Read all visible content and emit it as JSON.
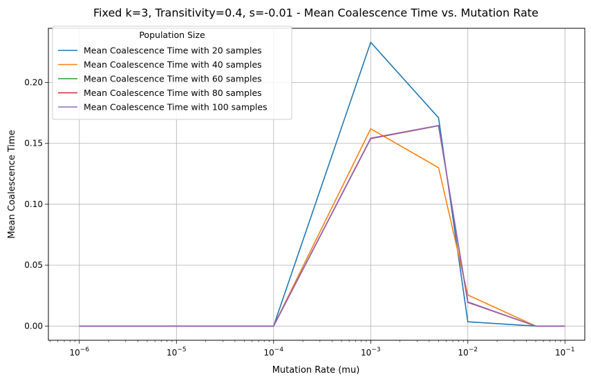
{
  "chart_data": {
    "type": "line",
    "title": "Fixed k=3, Transitivity=0.4, s=-0.01 - Mean Coalescence Time vs. Mutation Rate",
    "xlabel": "Mutation Rate (mu)",
    "ylabel": "Mean Coalescence Time",
    "xscale": "log",
    "xlim": [
      4.8e-07,
      0.16
    ],
    "ylim": [
      -0.0117,
      0.2445
    ],
    "grid": true,
    "legend": {
      "title": "Population Size",
      "placement": "upper-left"
    },
    "x": [
      1e-06,
      1e-05,
      0.0001,
      0.001,
      0.005,
      0.01,
      0.05,
      0.1
    ],
    "x_ticks": [
      {
        "value": 1e-06,
        "base": "10",
        "exp": "−6"
      },
      {
        "value": 1e-05,
        "base": "10",
        "exp": "−5"
      },
      {
        "value": 0.0001,
        "base": "10",
        "exp": "−4"
      },
      {
        "value": 0.001,
        "base": "10",
        "exp": "−3"
      },
      {
        "value": 0.01,
        "base": "10",
        "exp": "−2"
      },
      {
        "value": 0.1,
        "base": "10",
        "exp": "−1"
      }
    ],
    "y_ticks": [
      {
        "value": 0.0,
        "label": "0.00"
      },
      {
        "value": 0.05,
        "label": "0.05"
      },
      {
        "value": 0.1,
        "label": "0.10"
      },
      {
        "value": 0.15,
        "label": "0.15"
      },
      {
        "value": 0.2,
        "label": "0.20"
      }
    ],
    "series": [
      {
        "name": "Mean Coalescence Time with 20 samples",
        "color": "#1f77b4",
        "values": [
          0,
          0,
          0,
          0.233,
          0.171,
          0.0035,
          0,
          0
        ]
      },
      {
        "name": "Mean Coalescence Time with 40 samples",
        "color": "#ff7f0e",
        "values": [
          0,
          0,
          0,
          0.162,
          0.13,
          0.0255,
          0,
          0
        ]
      },
      {
        "name": "Mean Coalescence Time with 60 samples",
        "color": "#2ca02c",
        "values": [
          0,
          0,
          0,
          0.154,
          0.1645,
          0.0195,
          0,
          0
        ]
      },
      {
        "name": "Mean Coalescence Time with 80 samples",
        "color": "#d62728",
        "values": [
          0,
          0,
          0,
          0.154,
          0.1645,
          0.0195,
          0,
          0
        ]
      },
      {
        "name": "Mean Coalescence Time with 100 samples",
        "color": "#9467bd",
        "values": [
          0,
          0,
          0,
          0.1543,
          0.1647,
          0.0198,
          0,
          0
        ]
      }
    ]
  }
}
